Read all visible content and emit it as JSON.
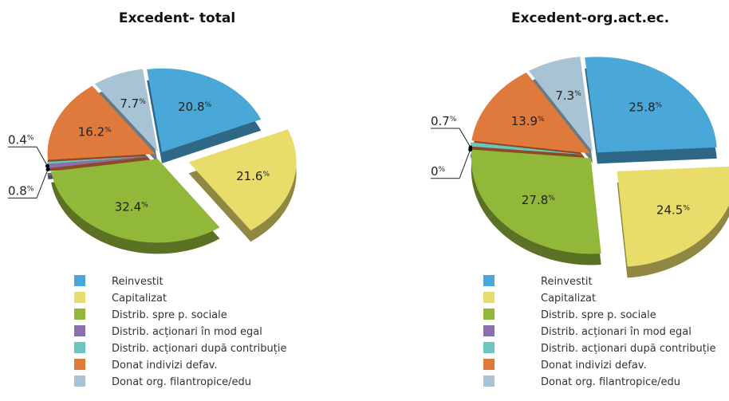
{
  "chart_data": [
    {
      "type": "pie",
      "title": "Excedent- total",
      "unit": "%",
      "categories": [
        "Reinvestit",
        "Capitalizat",
        "Distrib. spre p. sociale",
        "Distrib. acționari în mod egal",
        "Distrib. acționari după contribuție",
        "Donat indivizi defav.",
        "Donat org. filantropice/edu"
      ],
      "values": [
        20.8,
        21.6,
        32.4,
        0.8,
        0.4,
        16.2,
        7.7
      ],
      "colors": [
        "#4aa8d8",
        "#e8dc6a",
        "#92b83a",
        "#8c6fb0",
        "#6cc6c0",
        "#e07a3c",
        "#a8c4d4"
      ]
    },
    {
      "type": "pie",
      "title": "Excedent-org.act.ec.",
      "unit": "%",
      "categories": [
        "Reinvestit",
        "Capitalizat",
        "Distrib. spre p. sociale",
        "Distrib. acționari în mod egal",
        "Distrib. acționari după contribuție",
        "Donat indivizi defav.",
        "Donat org. filantropice/edu"
      ],
      "values": [
        25.8,
        24.5,
        27.8,
        0.0,
        0.7,
        13.9,
        7.3
      ],
      "colors": [
        "#4aa8d8",
        "#e8dc6a",
        "#92b83a",
        "#8c6fb0",
        "#6cc6c0",
        "#e07a3c",
        "#a8c4d4"
      ]
    }
  ]
}
